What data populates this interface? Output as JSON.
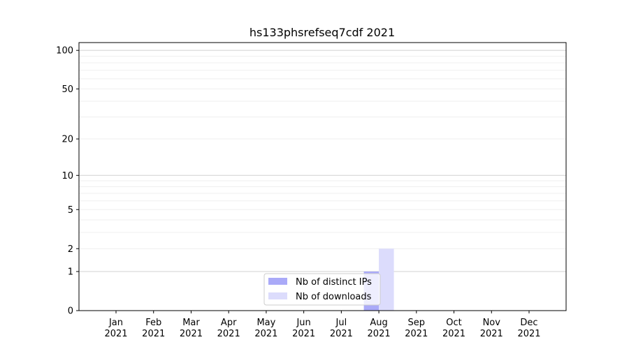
{
  "chart_data": {
    "type": "bar",
    "title": "hs133phsrefseq7cdf 2021",
    "xlabel": "",
    "ylabel": "",
    "categories": [
      "Jan\n2021",
      "Feb\n2021",
      "Mar\n2021",
      "Apr\n2021",
      "May\n2021",
      "Jun\n2021",
      "Jul\n2021",
      "Aug\n2021",
      "Sep\n2021",
      "Oct\n2021",
      "Nov\n2021",
      "Dec\n2021"
    ],
    "series": [
      {
        "name": "Nb of distinct IPs",
        "color": "#aaaaf8",
        "values": [
          0,
          0,
          0,
          0,
          0,
          0,
          0,
          1,
          0,
          0,
          0,
          0
        ]
      },
      {
        "name": "Nb of downloads",
        "color": "#dcdcfc",
        "values": [
          0,
          0,
          0,
          0,
          0,
          0,
          0,
          2,
          0,
          0,
          0,
          0
        ]
      }
    ],
    "yscale": "log(1+y)",
    "ylim": [
      0,
      115
    ],
    "yticks": [
      0,
      1,
      2,
      5,
      10,
      20,
      50,
      100
    ],
    "grid": true,
    "legend_placement": "lower-center"
  }
}
